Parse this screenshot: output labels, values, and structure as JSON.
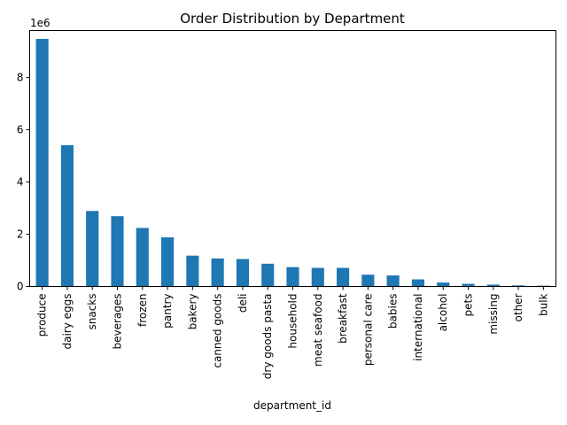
{
  "chart_data": {
    "type": "bar",
    "title": "Order Distribution by Department",
    "xlabel": "department_id",
    "ylabel": "",
    "y_offset_label": "1e6",
    "y_scale": 1000000,
    "ylim": [
      0,
      9.8
    ],
    "yticks": [
      0,
      2,
      4,
      6,
      8
    ],
    "ytick_labels": [
      "0",
      "2",
      "4",
      "6",
      "8"
    ],
    "grid": false,
    "bar_color": "#1f77b4",
    "categories": [
      "produce",
      "dairy eggs",
      "snacks",
      "beverages",
      "frozen",
      "pantry",
      "bakery",
      "canned goods",
      "deli",
      "dry goods pasta",
      "household",
      "meat seafood",
      "breakfast",
      "personal care",
      "babies",
      "international",
      "alcohol",
      "pets",
      "missing",
      "other",
      "bulk"
    ],
    "values": [
      9.48,
      5.41,
      2.89,
      2.69,
      2.24,
      1.88,
      1.18,
      1.07,
      1.05,
      0.87,
      0.74,
      0.71,
      0.71,
      0.45,
      0.42,
      0.27,
      0.15,
      0.1,
      0.07,
      0.04,
      0.03
    ]
  }
}
